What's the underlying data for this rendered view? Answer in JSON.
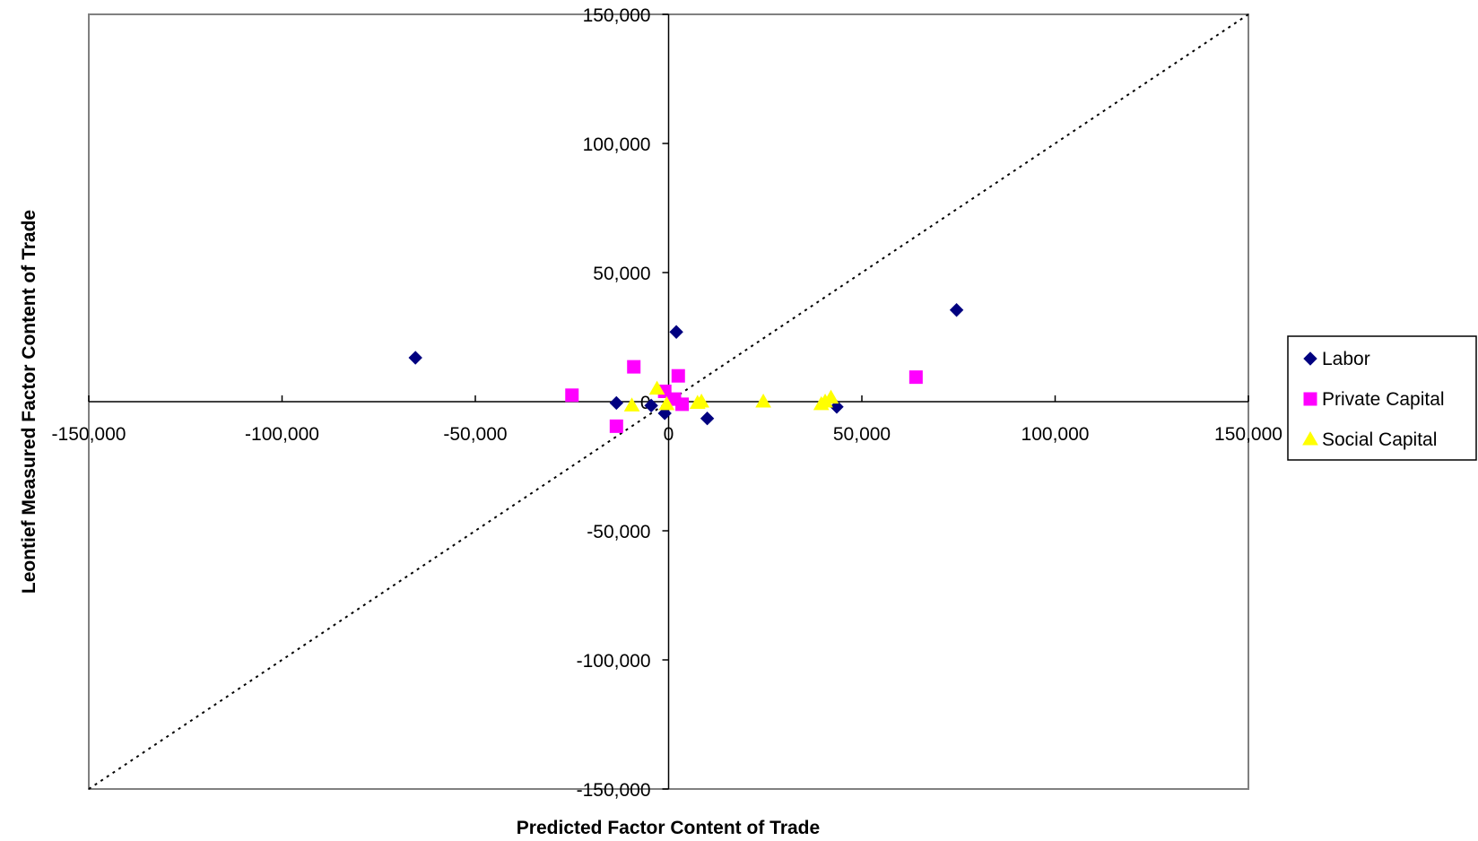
{
  "chart_data": {
    "type": "scatter",
    "xlabel": "Predicted Factor Content of Trade",
    "ylabel": "Leontief Measured Factor Content of Trade",
    "xlim": [
      -150000,
      150000
    ],
    "ylim": [
      -150000,
      150000
    ],
    "x_ticks": [
      {
        "value": -150000,
        "label": "-150,000"
      },
      {
        "value": -100000,
        "label": "-100,000"
      },
      {
        "value": -50000,
        "label": "-50,000"
      },
      {
        "value": 0,
        "label": "0"
      },
      {
        "value": 50000,
        "label": "50,000"
      },
      {
        "value": 100000,
        "label": "100,000"
      },
      {
        "value": 150000,
        "label": "150,000"
      }
    ],
    "y_ticks": [
      {
        "value": 150000,
        "label": "150,000"
      },
      {
        "value": 100000,
        "label": "100,000"
      },
      {
        "value": 50000,
        "label": "50,000"
      },
      {
        "value": 0,
        "label": "0"
      },
      {
        "value": -50000,
        "label": "-50,000"
      },
      {
        "value": -100000,
        "label": "-100,000"
      },
      {
        "value": -150000,
        "label": "-150,000"
      }
    ],
    "grid": false,
    "legend_position": "right",
    "reference_line": {
      "style": "dotted",
      "from": [
        -150000,
        -150000
      ],
      "to": [
        150000,
        150000
      ]
    },
    "series": [
      {
        "name": "Labor",
        "marker": "diamond",
        "color": "#000080",
        "points": [
          {
            "x": -65500,
            "y": 17000
          },
          {
            "x": -13500,
            "y": -500
          },
          {
            "x": -4500,
            "y": -1500
          },
          {
            "x": -1000,
            "y": -4500
          },
          {
            "x": 2000,
            "y": 27000
          },
          {
            "x": 10000,
            "y": -6500
          },
          {
            "x": 43500,
            "y": -2000
          },
          {
            "x": 74500,
            "y": 35500
          }
        ]
      },
      {
        "name": "Private Capital",
        "marker": "square",
        "color": "#ff00ff",
        "points": [
          {
            "x": -25000,
            "y": 2500
          },
          {
            "x": -9000,
            "y": 13500
          },
          {
            "x": -13500,
            "y": -9500
          },
          {
            "x": -1000,
            "y": 4000
          },
          {
            "x": 2500,
            "y": 10000
          },
          {
            "x": 1500,
            "y": 1000
          },
          {
            "x": 3500,
            "y": -1000
          },
          {
            "x": 64000,
            "y": 9500
          }
        ]
      },
      {
        "name": "Social Capital",
        "marker": "triangle",
        "color": "#ffff00",
        "points": [
          {
            "x": -3000,
            "y": 5000
          },
          {
            "x": -9500,
            "y": -1500
          },
          {
            "x": -500,
            "y": -1000
          },
          {
            "x": 7500,
            "y": -500
          },
          {
            "x": 8500,
            "y": 0
          },
          {
            "x": 24500,
            "y": 0
          },
          {
            "x": 39500,
            "y": -1000
          },
          {
            "x": 40500,
            "y": 0
          },
          {
            "x": 42000,
            "y": 1500
          }
        ]
      }
    ]
  }
}
